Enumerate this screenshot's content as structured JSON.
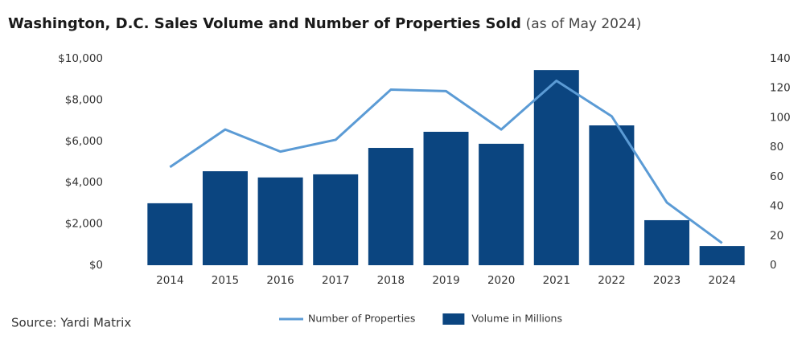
{
  "chart_data": {
    "type": "combo",
    "title": "Washington, D.C. Sales Volume and Number of Properties Sold",
    "subtitle": "(as of May 2024)",
    "source": "Source: Yardi Matrix",
    "categories": [
      "2014",
      "2015",
      "2016",
      "2017",
      "2018",
      "2019",
      "2020",
      "2021",
      "2022",
      "2023",
      "2024"
    ],
    "series": [
      {
        "name": "Number of Properties",
        "type": "line",
        "axis": "y2",
        "color": "#5b9bd5",
        "values": [
          66.5,
          92,
          77,
          85,
          119,
          118,
          92,
          125,
          101,
          42.5,
          15
        ]
      },
      {
        "name": "Volume in Millions",
        "type": "bar",
        "color": "#0b4580",
        "values": [
          3000,
          4550,
          4250,
          4400,
          5680,
          6460,
          5880,
          9450,
          6770,
          2180,
          930
        ]
      }
    ],
    "ylim": [
      0,
      10000
    ],
    "yticks": [
      {
        "value": 0,
        "label": "$0"
      },
      {
        "value": 2000,
        "label": "$2,000"
      },
      {
        "value": 4000,
        "label": "$4,000"
      },
      {
        "value": 6000,
        "label": "$6,000"
      },
      {
        "value": 8000,
        "label": "$8,000"
      },
      {
        "value": 10000,
        "label": "$10,000"
      }
    ],
    "y2lim": [
      0,
      140
    ],
    "y2ticks": [
      0,
      20,
      40,
      60,
      80,
      100,
      120,
      140
    ],
    "grid": false
  }
}
